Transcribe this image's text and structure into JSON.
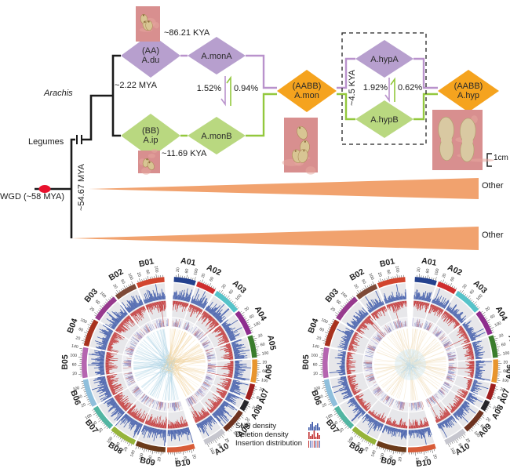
{
  "tree": {
    "labels": {
      "arachis": "Arachis",
      "legumes": "Legumes",
      "wgd": "WGD (~58 MYA)",
      "stem_age": "~54.67 MYA",
      "arachis_split": "~2.22 MYA",
      "a_split": "~86.21 KYA",
      "b_split": "~11.69 KYA",
      "hyp_age": "~4.5 KYA",
      "other_1": "Other",
      "other_2": "Other"
    },
    "nodes": [
      {
        "id": "du",
        "label": "(AA)\nA.du",
        "color": "#b79fce"
      },
      {
        "id": "monA",
        "label": "A.monA",
        "color": "#b79fce"
      },
      {
        "id": "ip",
        "label": "(BB)\nA.ip",
        "color": "#b9d880"
      },
      {
        "id": "monB",
        "label": "A.monB",
        "color": "#b9d880"
      },
      {
        "id": "mon",
        "label": "(AABB)\nA.mon",
        "color": "#f5a31e"
      },
      {
        "id": "hypA",
        "label": "A.hypA",
        "color": "#b79fce"
      },
      {
        "id": "hypB",
        "label": "A.hypB",
        "color": "#b9d880"
      },
      {
        "id": "hyp",
        "label": "(AABB)\nA.hyp",
        "color": "#f5a31e"
      }
    ],
    "gene_flow": [
      {
        "from": "A.monA",
        "to": "A.monB",
        "value": "1.52%"
      },
      {
        "from": "A.monB",
        "to": "A.monA",
        "value": "0.94%"
      },
      {
        "from": "A.hypA",
        "to": "A.hypB",
        "value": "1.92%"
      },
      {
        "from": "A.hypB",
        "to": "A.hypA",
        "value": "0.62%"
      }
    ],
    "line_colors": {
      "a_lineage": "#b992cc",
      "b_lineage": "#93c83d",
      "tree": "#1a1a1a",
      "wgd_dot": "#e8112d",
      "other_triangle": "#f1a26e"
    },
    "photos": [
      {
        "id": "photo-a-genome-pods"
      },
      {
        "id": "photo-b-genome-pods"
      },
      {
        "id": "photo-a-mon-pods"
      },
      {
        "id": "photo-a-hyp-pods"
      }
    ]
  },
  "scale_bar": {
    "label": "1cm"
  },
  "circos": {
    "tick_label_values": [
      20,
      60,
      100,
      140
    ],
    "minor_tick_mb": 10,
    "legend": [
      {
        "label": "SNP density",
        "icon": "snp-histogram-icon",
        "color": "#3b57a8"
      },
      {
        "label": "Deletion density",
        "icon": "deletion-histogram-icon",
        "color": "#c23030"
      },
      {
        "label": "Insertion distribution",
        "icon": "insertion-ticks-icon",
        "color": "#8f86c8"
      }
    ],
    "track_colors": {
      "snp": "#3b57a8",
      "deletion": "#c23030",
      "insertion": [
        "#8f86c8",
        "#c46a6a",
        "#7a88c0"
      ]
    },
    "chromosomes_a": [
      {
        "name": "A01",
        "size_mb": 107,
        "color": "#24418e"
      },
      {
        "name": "A02",
        "size_mb": 94,
        "color": "#cf2e2e"
      },
      {
        "name": "A03",
        "size_mb": 134,
        "color": "#56c3c9"
      },
      {
        "name": "A04",
        "size_mb": 124,
        "color": "#8e2d8e"
      },
      {
        "name": "A05",
        "size_mb": 110,
        "color": "#3a7d2c"
      },
      {
        "name": "A06",
        "size_mb": 113,
        "color": "#e8952e"
      },
      {
        "name": "A07",
        "size_mb": 79,
        "color": "#9e1f1f"
      },
      {
        "name": "A08",
        "size_mb": 51,
        "color": "#26262a"
      },
      {
        "name": "A09",
        "size_mb": 120,
        "color": "#6e3320"
      },
      {
        "name": "A10",
        "size_mb": 110,
        "color": "#c6c6ce"
      }
    ],
    "chromosomes_b": [
      {
        "name": "B01",
        "size_mb": 137,
        "color": "#d2452e"
      },
      {
        "name": "B02",
        "size_mb": 109,
        "color": "#7e4a38"
      },
      {
        "name": "B03",
        "size_mb": 136,
        "color": "#973a8e"
      },
      {
        "name": "B04",
        "size_mb": 134,
        "color": "#a8321e"
      },
      {
        "name": "B05",
        "size_mb": 149,
        "color": "#b565b0"
      },
      {
        "name": "B06",
        "size_mb": 137,
        "color": "#8fbfdc"
      },
      {
        "name": "B07",
        "size_mb": 126,
        "color": "#52b5a2"
      },
      {
        "name": "B08",
        "size_mb": 130,
        "color": "#96b43a"
      },
      {
        "name": "B09",
        "size_mb": 147,
        "color": "#6b3a1a"
      },
      {
        "name": "B10",
        "size_mb": 136,
        "color": "#d85c38"
      }
    ],
    "plots": [
      {
        "id": "left",
        "ribbons": {
          "b_side": "#aed4e6",
          "a_side": "#f2d4a0"
        }
      },
      {
        "id": "right",
        "ribbons": {
          "all": "#f3e2c4",
          "center": "#d3e8f2"
        }
      }
    ]
  }
}
